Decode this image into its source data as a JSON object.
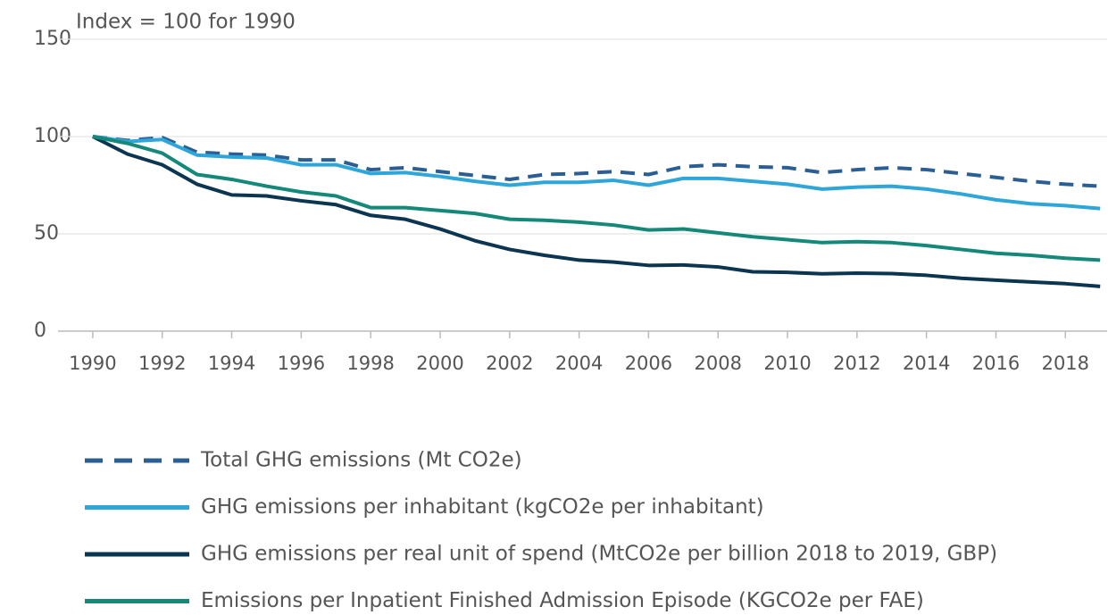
{
  "chart_data": {
    "type": "line",
    "annotation": "Index = 100 for 1990",
    "x": [
      1990,
      1991,
      1992,
      1993,
      1994,
      1995,
      1996,
      1997,
      1998,
      1999,
      2000,
      2001,
      2002,
      2003,
      2004,
      2005,
      2006,
      2007,
      2008,
      2009,
      2010,
      2011,
      2012,
      2013,
      2014,
      2015,
      2016,
      2017,
      2018,
      2019
    ],
    "series": [
      {
        "name": "Total GHG emissions (Mt CO2e)",
        "color": "#2b5f94",
        "line_style": "dashed",
        "values": [
          100,
          98,
          99.5,
          92,
          91,
          90.5,
          88,
          88,
          83,
          84,
          82,
          80,
          78,
          80.5,
          81,
          82,
          80.5,
          84.5,
          85.5,
          84.5,
          84,
          81.5,
          83,
          84,
          83,
          81,
          79,
          77,
          75.5,
          74.5
        ]
      },
      {
        "name": "GHG emissions per inhabitant (kgCO2e per inhabitant)",
        "color": "#2ea6d9",
        "line_style": "solid",
        "values": [
          100,
          97.5,
          98.5,
          90.5,
          89.5,
          89,
          85.5,
          85.5,
          81,
          81.5,
          79.5,
          77,
          75,
          76.5,
          76.5,
          77.5,
          75,
          78.5,
          78.5,
          77,
          75.5,
          73,
          74,
          74.5,
          73,
          70.5,
          67.5,
          65.5,
          64.5,
          63
        ]
      },
      {
        "name": "GHG emissions per real unit of spend (MtCO2e per billion 2018 to 2019, GBP)",
        "color": "#0b3550",
        "line_style": "solid",
        "values": [
          100,
          91,
          85.5,
          75.5,
          70,
          69.5,
          67,
          65,
          59.5,
          57.5,
          52.5,
          46.5,
          42,
          39,
          36.5,
          35.5,
          33.8,
          34,
          33,
          30.5,
          30.2,
          29.5,
          29.8,
          29.6,
          28.7,
          27.2,
          26.2,
          25.3,
          24.4,
          23
        ]
      },
      {
        "name": "Emissions per Inpatient Finished Admission Episode (KGCO2e per FAE)",
        "color": "#14897a",
        "line_style": "solid",
        "values": [
          100,
          96.5,
          91.5,
          80.5,
          78,
          74.5,
          71.5,
          69.5,
          63.5,
          63.5,
          62,
          60.5,
          57.5,
          57,
          56,
          54.5,
          52,
          52.5,
          50.5,
          48.5,
          47,
          45.5,
          46,
          45.5,
          44,
          42,
          40,
          39,
          37.5,
          36.5
        ]
      }
    ],
    "xlim": [
      1989,
      2019.2
    ],
    "xticks": [
      1990,
      1992,
      1994,
      1996,
      1998,
      2000,
      2002,
      2004,
      2006,
      2008,
      2010,
      2012,
      2014,
      2016,
      2018
    ],
    "ylim": [
      0,
      150
    ],
    "yticks": [
      0,
      50,
      100,
      150
    ],
    "grid": true
  }
}
